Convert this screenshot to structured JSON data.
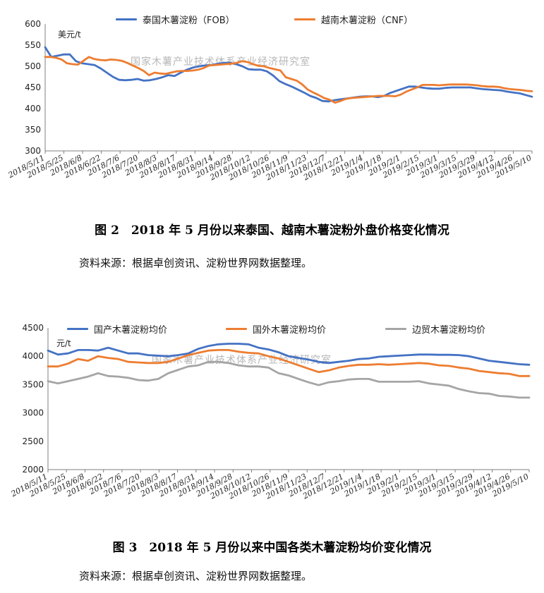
{
  "figure2": {
    "legend": [
      {
        "name": "泰国木薯淀粉（FOB）",
        "color": "#4472C4"
      },
      {
        "name": "越南木薯淀粉（CNF）",
        "color": "#ED7D31"
      }
    ],
    "unit": "美元/t",
    "watermark": "国家木薯产业技术体系产业经济研究室",
    "caption": "图 2　2018 年 5 月份以来泰国、越南木薯淀粉外盘价格变化情况",
    "source": "资料来源：根据卓创资讯、淀粉世界网数据整理。"
  },
  "figure3": {
    "legend": [
      {
        "name": "国产木薯淀粉均价",
        "color": "#4472C4"
      },
      {
        "name": "国外木薯淀粉均价",
        "color": "#ED7D31"
      },
      {
        "name": "边贸木薯淀粉均价",
        "color": "#A5A5A5"
      }
    ],
    "unit": "元/t",
    "watermark": "国家木薯产业技术体系产业经济研究室",
    "caption": "图 3　2018 年 5 月份以来中国各类木薯淀粉均价变化情况",
    "source": "资料来源：根据卓创资讯、淀粉世界网数据整理。"
  },
  "chart_data": [
    {
      "type": "line",
      "title": "",
      "ylabel": "美元/t",
      "ylim": [
        300,
        600
      ],
      "yticks": [
        300,
        350,
        400,
        450,
        500,
        550,
        600
      ],
      "xtick_labels": [
        "2018/5/11",
        "2018/5/25",
        "2018/6/8",
        "2018/6/22",
        "2018/7/6",
        "2018/7/20",
        "2018/8/3",
        "2018/8/17",
        "2018/8/31",
        "2018/9/14",
        "2018/9/28",
        "2018/10/12",
        "2018/10/26",
        "2018/11/9",
        "2018/11/23",
        "2018/12/7",
        "2018/12/21",
        "2019/1/4",
        "2019/1/18",
        "2019/2/1",
        "2019/2/15",
        "2019/3/1",
        "2019/3/15",
        "2019/3/29",
        "2019/4/12",
        "2019/4/26",
        "2019/5/10"
      ],
      "grid": false,
      "legend_position": "top",
      "series": [
        {
          "name": "泰国木薯淀粉（FOB）",
          "color": "#4472C4",
          "values": [
            545,
            522,
            525,
            528,
            528,
            512,
            507,
            505,
            503,
            495,
            485,
            475,
            468,
            467,
            468,
            470,
            466,
            467,
            470,
            474,
            479,
            477,
            485,
            492,
            497,
            500,
            502,
            503,
            506,
            508,
            508,
            505,
            500,
            493,
            492,
            492,
            488,
            478,
            465,
            458,
            452,
            445,
            438,
            430,
            425,
            418,
            417,
            420,
            422,
            424,
            426,
            428,
            429,
            429,
            427,
            430,
            437,
            442,
            447,
            452,
            452,
            450,
            448,
            447,
            447,
            449,
            450,
            450,
            450,
            450,
            448,
            446,
            445,
            444,
            443,
            440,
            438,
            436,
            432,
            428
          ]
        },
        {
          "name": "越南木薯淀粉（CNF）",
          "color": "#ED7D31",
          "values": [
            522,
            522,
            520,
            516,
            507,
            505,
            504,
            513,
            522,
            517,
            515,
            514,
            516,
            515,
            513,
            508,
            502,
            496,
            489,
            479,
            485,
            483,
            482,
            485,
            488,
            489,
            489,
            490,
            492,
            496,
            502,
            503,
            504,
            505,
            506,
            508,
            512,
            510,
            505,
            501,
            500,
            496,
            493,
            490,
            474,
            470,
            466,
            457,
            445,
            438,
            432,
            425,
            421,
            414,
            418,
            423,
            425,
            426,
            427,
            428,
            429,
            430,
            430,
            430,
            429,
            433,
            440,
            445,
            450,
            456,
            456,
            456,
            455,
            456,
            457,
            457,
            457,
            457,
            456,
            455,
            453,
            452,
            452,
            451,
            448,
            446,
            445,
            444,
            442,
            441
          ]
        }
      ]
    },
    {
      "type": "line",
      "title": "",
      "ylabel": "元/t",
      "ylim": [
        2000,
        4500
      ],
      "yticks": [
        2000,
        2500,
        3000,
        3500,
        4000,
        4500
      ],
      "xtick_labels": [
        "2018/5/11",
        "2018/5/25",
        "2018/6/8",
        "2018/6/22",
        "2018/7/6",
        "2018/7/20",
        "2018/8/3",
        "2018/8/17",
        "2018/8/31",
        "2018/9/14",
        "2018/9/28",
        "2018/10/12",
        "2018/10/26",
        "2018/11/9",
        "2018/11/23",
        "2018/12/7",
        "2018/12/21",
        "2019/1/4",
        "2019/1/18",
        "2019/2/1",
        "2019/2/15",
        "2019/3/1",
        "2019/3/15",
        "2019/3/29",
        "2019/4/12",
        "2019/4/26",
        "2019/5/10"
      ],
      "grid": false,
      "legend_position": "top",
      "series": [
        {
          "name": "国产木薯淀粉均价",
          "color": "#4472C4",
          "values": [
            4100,
            4030,
            4050,
            4110,
            4110,
            4100,
            4150,
            4100,
            4050,
            4050,
            4020,
            4010,
            4000,
            4020,
            4050,
            4130,
            4180,
            4210,
            4220,
            4220,
            4210,
            4150,
            4120,
            4070,
            4000,
            3970,
            3940,
            3900,
            3880,
            3900,
            3920,
            3950,
            3960,
            3990,
            4000,
            4010,
            4020,
            4030,
            4030,
            4025,
            4025,
            4020,
            4000,
            3960,
            3920,
            3900,
            3880,
            3860,
            3850
          ]
        },
        {
          "name": "国外木薯淀粉均价",
          "color": "#ED7D31",
          "values": [
            3820,
            3820,
            3870,
            3950,
            3920,
            4000,
            3970,
            3950,
            3900,
            3890,
            3880,
            3880,
            3900,
            3960,
            4020,
            4060,
            4100,
            4110,
            4110,
            4080,
            4060,
            4050,
            4000,
            3960,
            3900,
            3840,
            3780,
            3720,
            3750,
            3800,
            3830,
            3850,
            3850,
            3860,
            3850,
            3860,
            3870,
            3880,
            3870,
            3840,
            3830,
            3800,
            3780,
            3740,
            3720,
            3700,
            3690,
            3650,
            3650
          ]
        },
        {
          "name": "边贸木薯淀粉均价",
          "color": "#A5A5A5",
          "values": [
            3560,
            3520,
            3560,
            3600,
            3640,
            3700,
            3650,
            3640,
            3620,
            3580,
            3570,
            3600,
            3700,
            3760,
            3820,
            3840,
            3900,
            3900,
            3880,
            3840,
            3820,
            3820,
            3800,
            3700,
            3660,
            3600,
            3540,
            3490,
            3540,
            3560,
            3590,
            3600,
            3600,
            3550,
            3550,
            3550,
            3550,
            3560,
            3520,
            3500,
            3480,
            3420,
            3380,
            3350,
            3340,
            3300,
            3290,
            3270,
            3270
          ]
        }
      ]
    }
  ]
}
